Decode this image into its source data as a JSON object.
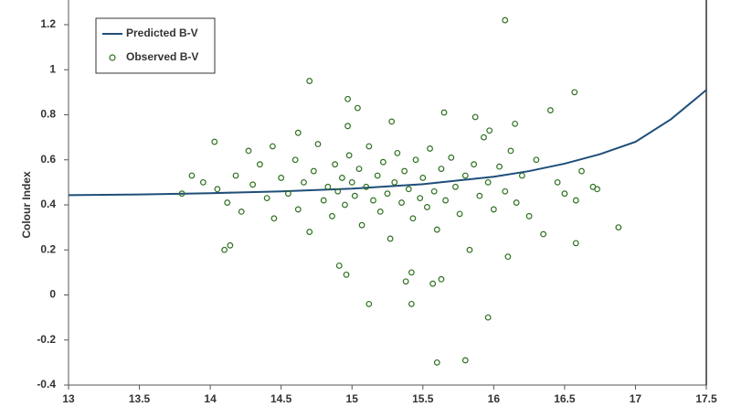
{
  "chart_data": {
    "type": "scatter",
    "y_label": "Colour Index",
    "xlim": [
      13,
      17.5
    ],
    "xticks": [
      13,
      13.5,
      14,
      14.5,
      15,
      15.5,
      16,
      16.5,
      17,
      17.5
    ],
    "ylim": [
      -0.4,
      1.2
    ],
    "yticks": [
      -0.4,
      -0.2,
      0,
      0.2,
      0.4,
      0.6,
      0.8,
      1,
      1.2
    ],
    "grid": false,
    "legend": "upper left",
    "series": [
      {
        "name": "Predicted B-V",
        "type": "line",
        "color": "#1f4e79",
        "x": [
          13,
          13.5,
          14,
          14.5,
          15,
          15.5,
          16,
          16.25,
          16.5,
          16.75,
          17,
          17.25,
          17.5
        ],
        "values": [
          0.443,
          0.446,
          0.452,
          0.46,
          0.472,
          0.492,
          0.525,
          0.55,
          0.583,
          0.625,
          0.68,
          0.78,
          0.91
        ]
      },
      {
        "name": "Observed B-V",
        "type": "scatter",
        "color": "#2e7020",
        "x": [
          16.08,
          14.7,
          14.97,
          15.04,
          16.57,
          16.4,
          16.88,
          16.58,
          15.6,
          15.8,
          15.96,
          15.12,
          15.42,
          15.38,
          15.57,
          15.63,
          15.42,
          14.96,
          14.91,
          14.1,
          14.14,
          13.8,
          13.87,
          14.03,
          14.27,
          14.44,
          16.7,
          16.58,
          16.35,
          16.1,
          13.95,
          14.05,
          14.12,
          14.18,
          14.22,
          14.3,
          14.35,
          14.4,
          14.45,
          14.5,
          14.55,
          14.6,
          14.62,
          14.66,
          14.7,
          14.73,
          14.76,
          14.8,
          14.83,
          14.86,
          14.88,
          14.9,
          14.93,
          14.95,
          14.98,
          15.0,
          15.02,
          15.05,
          15.07,
          15.1,
          15.12,
          15.15,
          15.18,
          15.2,
          15.22,
          15.25,
          15.27,
          15.3,
          15.32,
          15.35,
          15.37,
          15.4,
          15.43,
          15.45,
          15.48,
          15.5,
          15.53,
          15.55,
          15.58,
          15.6,
          15.63,
          15.66,
          15.7,
          15.73,
          15.76,
          15.8,
          15.83,
          15.86,
          15.9,
          15.93,
          15.96,
          16.0,
          16.04,
          16.08,
          16.12,
          16.16,
          16.2,
          16.25,
          16.3,
          16.45,
          16.5,
          16.62,
          16.73,
          15.28,
          15.87,
          15.65,
          14.62,
          15.97,
          16.15,
          14.97
        ],
        "values": [
          1.22,
          0.95,
          0.87,
          0.83,
          0.9,
          0.82,
          0.3,
          0.23,
          -0.3,
          -0.29,
          -0.1,
          -0.04,
          -0.04,
          0.06,
          0.05,
          0.07,
          0.1,
          0.09,
          0.13,
          0.2,
          0.22,
          0.45,
          0.53,
          0.68,
          0.64,
          0.66,
          0.48,
          0.42,
          0.27,
          0.17,
          0.5,
          0.47,
          0.41,
          0.53,
          0.37,
          0.49,
          0.58,
          0.43,
          0.34,
          0.52,
          0.45,
          0.6,
          0.38,
          0.5,
          0.28,
          0.55,
          0.67,
          0.42,
          0.48,
          0.35,
          0.58,
          0.46,
          0.52,
          0.4,
          0.62,
          0.5,
          0.44,
          0.56,
          0.31,
          0.48,
          0.66,
          0.42,
          0.53,
          0.37,
          0.59,
          0.45,
          0.25,
          0.5,
          0.63,
          0.41,
          0.55,
          0.47,
          0.34,
          0.6,
          0.43,
          0.52,
          0.39,
          0.65,
          0.46,
          0.29,
          0.56,
          0.42,
          0.61,
          0.48,
          0.36,
          0.53,
          0.2,
          0.58,
          0.44,
          0.7,
          0.5,
          0.38,
          0.57,
          0.46,
          0.64,
          0.41,
          0.53,
          0.35,
          0.6,
          0.5,
          0.45,
          0.55,
          0.47,
          0.77,
          0.79,
          0.81,
          0.72,
          0.73,
          0.76,
          0.75
        ]
      }
    ]
  }
}
